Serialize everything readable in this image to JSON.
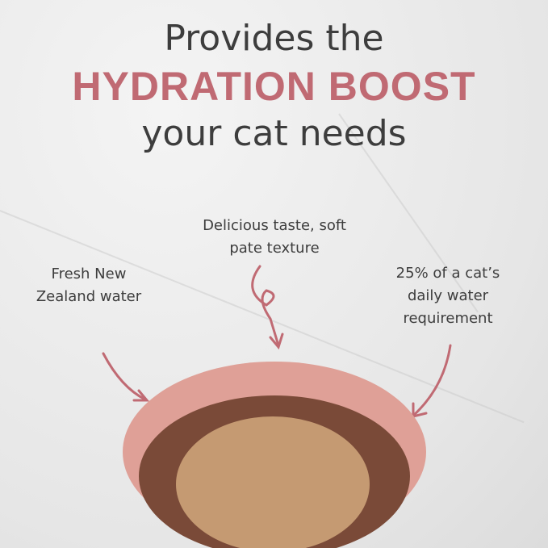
{
  "headline": {
    "line1": "Provides the",
    "line2": "HYDRATION BOOST",
    "line3": "your cat needs"
  },
  "callouts": {
    "left": "Fresh New Zealand water",
    "center": "Delicious taste, soft pate texture",
    "right": "25% of a cat’s daily water requirement"
  },
  "colors": {
    "accent": "#c06a73",
    "text": "#3d3d3d",
    "bowl": "#d9958f"
  }
}
